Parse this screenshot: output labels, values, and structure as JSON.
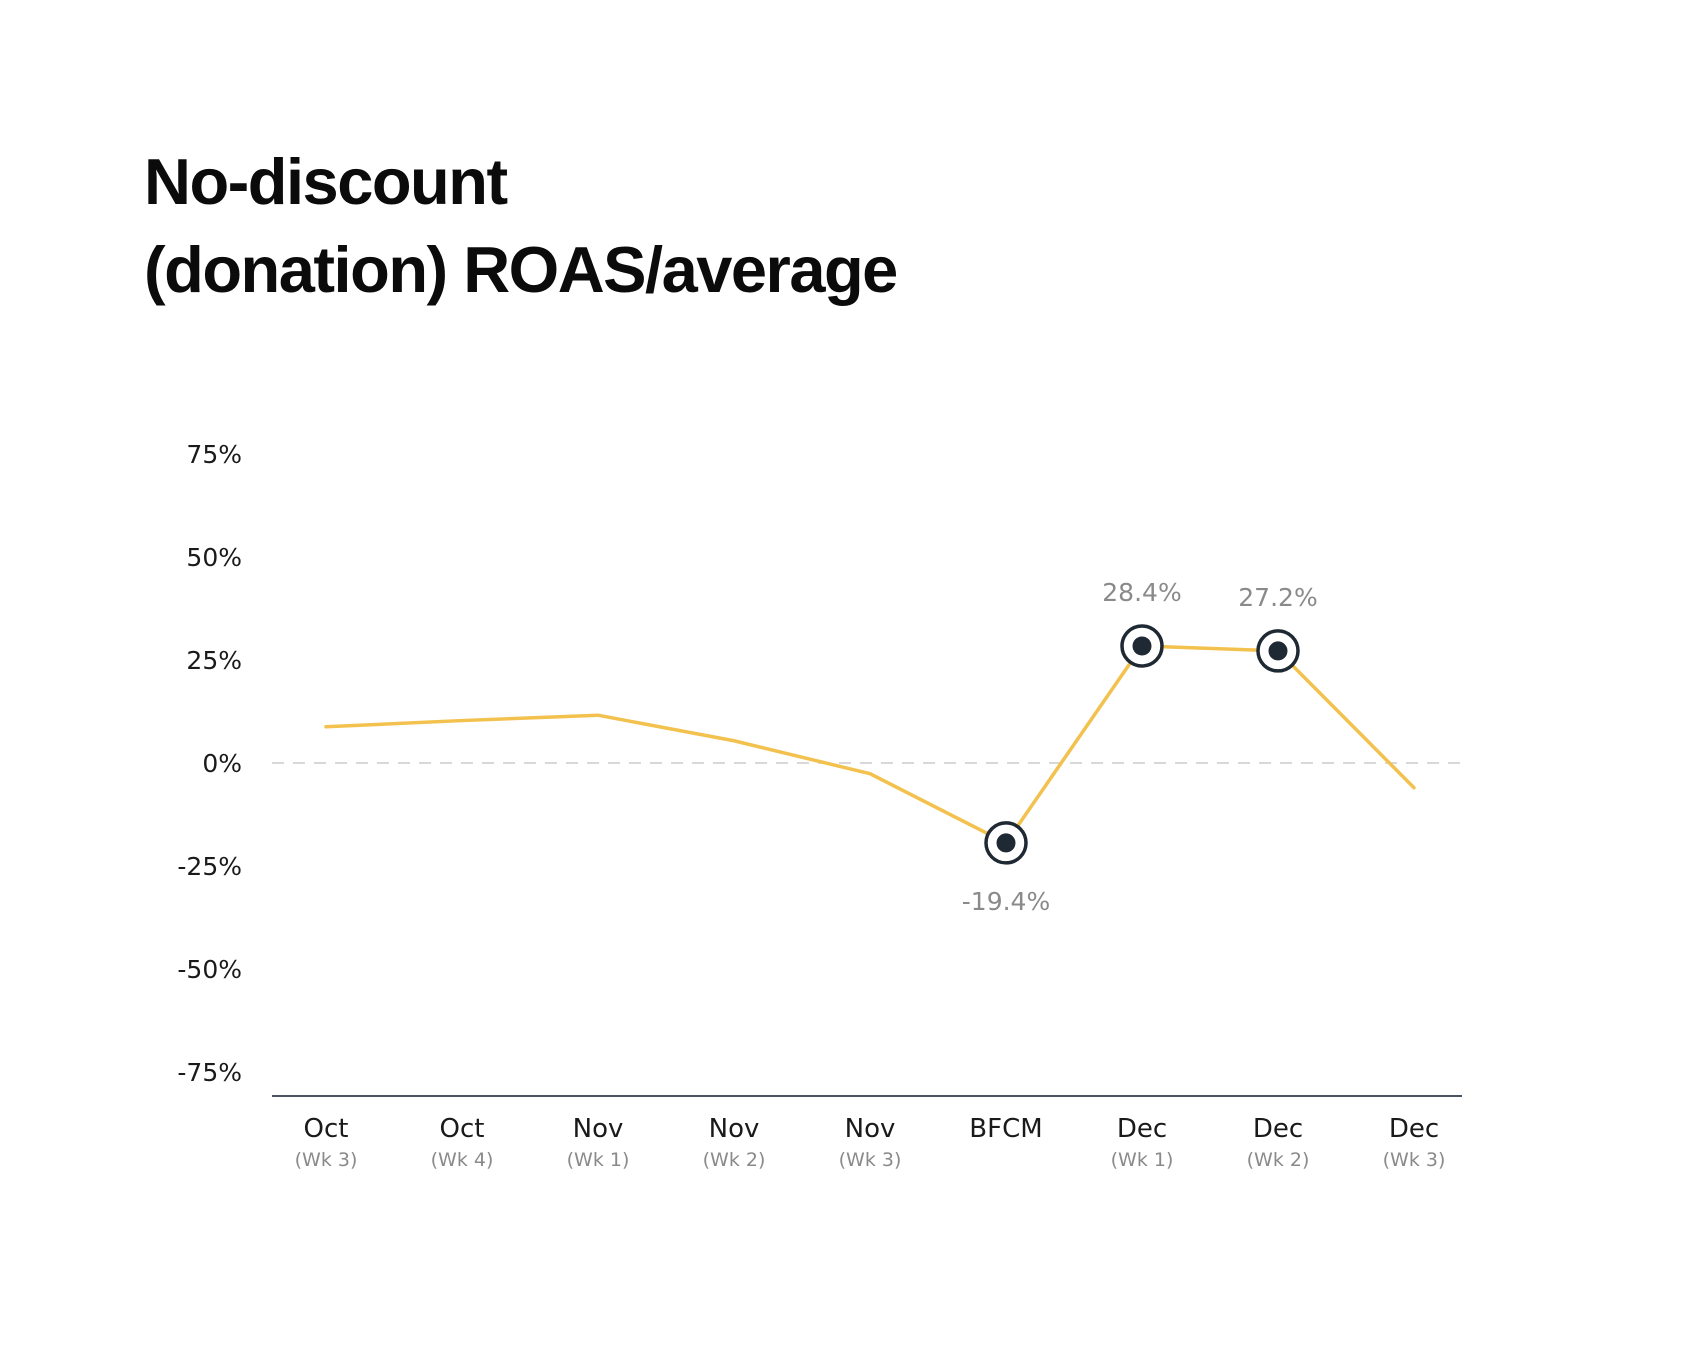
{
  "title_lines": [
    "No-discount",
    "(donation) ROAS/average"
  ],
  "colors": {
    "line": "#F2C14E",
    "marker": "#1f2933",
    "zero_line": "#cccccc",
    "axis": "#4a5560",
    "annotation": "#8a8a8a"
  },
  "chart_data": {
    "type": "line",
    "title": "No-discount (donation) ROAS/average",
    "categories": [
      {
        "main": "Oct",
        "sub": "(Wk 3)"
      },
      {
        "main": "Oct",
        "sub": "(Wk 4)"
      },
      {
        "main": "Nov",
        "sub": "(Wk 1)"
      },
      {
        "main": "Nov",
        "sub": "(Wk 2)"
      },
      {
        "main": "Nov",
        "sub": "(Wk 3)"
      },
      {
        "main": "BFCM",
        "sub": ""
      },
      {
        "main": "Dec",
        "sub": "(Wk 1)"
      },
      {
        "main": "Dec",
        "sub": "(Wk 2)"
      },
      {
        "main": "Dec",
        "sub": "(Wk 3)"
      }
    ],
    "series": [
      {
        "values": [
          8.8,
          10.3,
          11.6,
          5.4,
          -2.6,
          -19.4,
          28.4,
          27.2,
          -6.0
        ]
      }
    ],
    "y_ticks": [
      75,
      50,
      25,
      0,
      -25,
      -50,
      -75
    ],
    "y_tick_labels": [
      "75%",
      "50%",
      "25%",
      "0%",
      "-25%",
      "-50%",
      "-75%"
    ],
    "ylim": [
      -80,
      80
    ],
    "zero_line": "dashed",
    "grid": false,
    "highlights": [
      {
        "index": 5,
        "label": "-19.4%",
        "position": "below"
      },
      {
        "index": 6,
        "label": "28.4%",
        "position": "above"
      },
      {
        "index": 7,
        "label": "27.2%",
        "position": "above"
      }
    ]
  }
}
